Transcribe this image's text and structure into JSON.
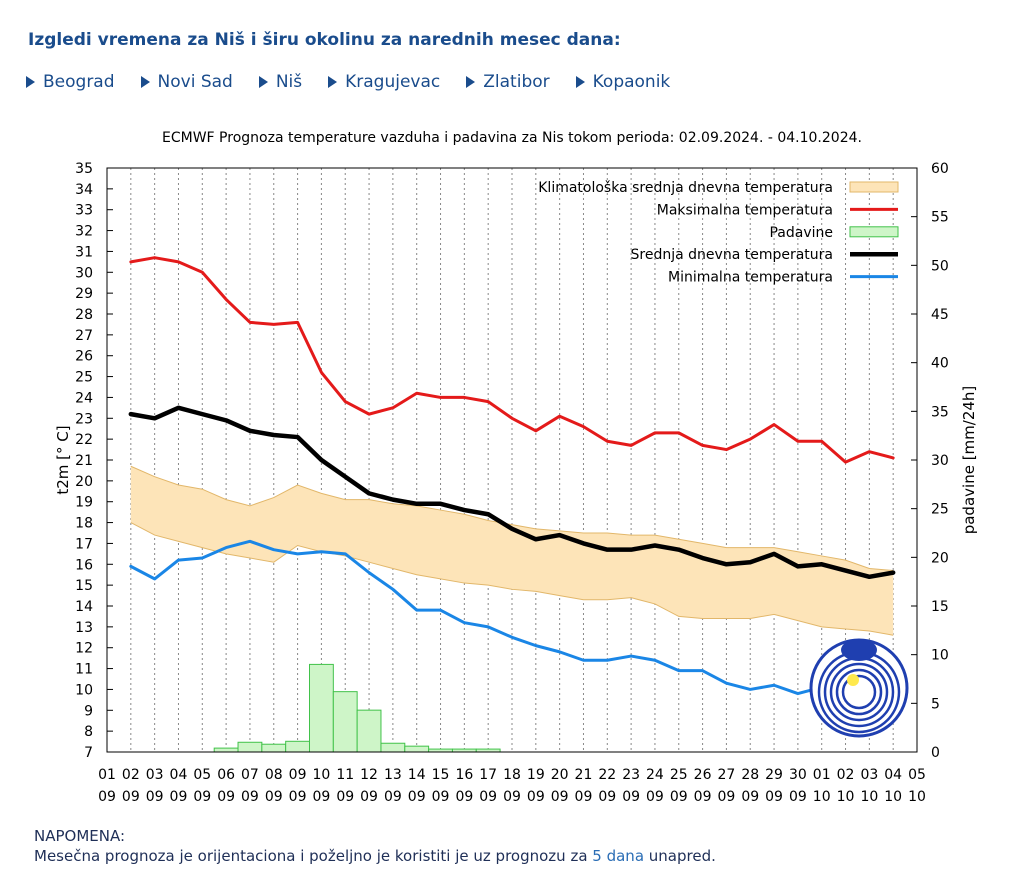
{
  "heading": "Izgledi vremena za Niš i širu okolinu za narednih mesec dana:",
  "cities": [
    "Beograd",
    "Novi Sad",
    "Niš",
    "Kragujevac",
    "Zlatibor",
    "Kopaonik"
  ],
  "note": {
    "title": "NAPOMENA:",
    "text_before": "Mesečna prognoza je orijentaciona i poželjno je koristiti je uz prognozu za ",
    "link": "5 dana",
    "text_after": " unapred."
  },
  "chart_data": {
    "type": "line",
    "title": "ECMWF Prognoza temperature vazduha i padavina za Nis tokom perioda: 02.09.2024. - 04.10.2024.",
    "ylabel": "t2m [° C]",
    "y2label": "padavine [mm/24h]",
    "ylim": [
      7,
      35
    ],
    "y2lim": [
      0,
      60
    ],
    "y2ticks": [
      0,
      5,
      10,
      15,
      20,
      25,
      30,
      35,
      40,
      45,
      50,
      55,
      60
    ],
    "grid": "vertical dashed",
    "legend_position": "top-right",
    "colors": {
      "clim_fill": "#fde4b8",
      "clim_edge": "#e2b76a",
      "max": "#e41a1a",
      "precip_fill": "#cef5c8",
      "precip_edge": "#41c24a",
      "mean": "#000000",
      "min": "#1a86e6"
    },
    "x_days": [
      "01",
      "02",
      "03",
      "04",
      "05",
      "06",
      "07",
      "08",
      "09",
      "10",
      "11",
      "12",
      "13",
      "14",
      "15",
      "16",
      "17",
      "18",
      "19",
      "20",
      "21",
      "22",
      "23",
      "24",
      "25",
      "26",
      "27",
      "28",
      "29",
      "30",
      "01",
      "02",
      "03",
      "04",
      "05"
    ],
    "x_months": [
      "09",
      "09",
      "09",
      "09",
      "09",
      "09",
      "09",
      "09",
      "09",
      "09",
      "09",
      "09",
      "09",
      "09",
      "09",
      "09",
      "09",
      "09",
      "09",
      "09",
      "09",
      "09",
      "09",
      "09",
      "09",
      "09",
      "09",
      "09",
      "09",
      "09",
      "10",
      "10",
      "10",
      "10",
      "10"
    ],
    "legend": [
      "Klimatološka srednja dnevna temperatura",
      "Maksimalna temperatura",
      "Padavine",
      "Srednja dnevna temperatura",
      "Minimalna temperatura"
    ],
    "series": {
      "max": [
        30.5,
        30.7,
        30.5,
        30.0,
        28.7,
        27.6,
        27.5,
        27.6,
        25.2,
        23.8,
        23.2,
        23.5,
        24.2,
        24.0,
        24.0,
        23.8,
        23.0,
        22.4,
        23.1,
        22.6,
        21.9,
        21.7,
        22.3,
        22.3,
        21.7,
        21.5,
        22.0,
        22.7,
        21.9,
        21.9,
        20.9,
        21.4,
        21.1
      ],
      "mean": [
        23.2,
        23.0,
        23.5,
        23.2,
        22.9,
        22.4,
        22.2,
        22.1,
        21.0,
        20.2,
        19.4,
        19.1,
        18.9,
        18.9,
        18.6,
        18.4,
        17.7,
        17.2,
        17.4,
        17.0,
        16.7,
        16.7,
        16.9,
        16.7,
        16.3,
        16.0,
        16.1,
        16.5,
        15.9,
        16.0,
        15.7,
        15.4,
        15.6
      ],
      "min": [
        15.9,
        15.3,
        16.2,
        16.3,
        16.8,
        17.1,
        16.7,
        16.5,
        16.6,
        16.5,
        15.6,
        14.8,
        13.8,
        13.8,
        13.2,
        13.0,
        12.5,
        12.1,
        11.8,
        11.4,
        11.4,
        11.6,
        11.4,
        10.9,
        10.9,
        10.3,
        10.0,
        10.2,
        9.8,
        10.1,
        9.9,
        9.2,
        9.4
      ],
      "clim_upper": [
        20.7,
        20.2,
        19.8,
        19.6,
        19.1,
        18.8,
        19.2,
        19.8,
        19.4,
        19.1,
        19.1,
        18.9,
        18.8,
        18.6,
        18.4,
        18.1,
        17.9,
        17.7,
        17.6,
        17.5,
        17.5,
        17.4,
        17.4,
        17.2,
        17.0,
        16.8,
        16.8,
        16.8,
        16.6,
        16.4,
        16.2,
        15.8,
        15.7
      ],
      "clim_lower": [
        18.0,
        17.4,
        17.1,
        16.8,
        16.5,
        16.3,
        16.1,
        16.9,
        16.6,
        16.4,
        16.1,
        15.8,
        15.5,
        15.3,
        15.1,
        15.0,
        14.8,
        14.7,
        14.5,
        14.3,
        14.3,
        14.4,
        14.1,
        13.5,
        13.4,
        13.4,
        13.4,
        13.6,
        13.3,
        13.0,
        12.9,
        12.8,
        12.6
      ],
      "precip": [
        0,
        0,
        0,
        0,
        0.4,
        1.0,
        0.8,
        1.1,
        9.0,
        6.2,
        4.3,
        0.9,
        0.6,
        0.3,
        0.3,
        0.3,
        0,
        0,
        0,
        0,
        0,
        0,
        0,
        0,
        0,
        0,
        0,
        0,
        0,
        0,
        0,
        0,
        0
      ]
    }
  }
}
